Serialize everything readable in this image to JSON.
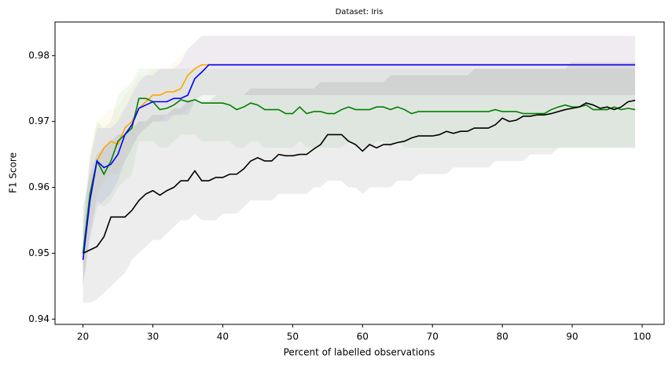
{
  "chart_data": {
    "type": "line",
    "title": "Dataset: Iris",
    "xlabel": "Percent of labelled observations",
    "ylabel": "F1 Score",
    "xlim": [
      16,
      103.15
    ],
    "ylim": [
      0.9392,
      0.9851
    ],
    "xticks": [
      20,
      30,
      40,
      50,
      60,
      70,
      80,
      90,
      100
    ],
    "yticks": [
      0.94,
      0.95,
      0.96,
      0.97,
      0.98
    ],
    "x": [
      20,
      21,
      22,
      23,
      24,
      25,
      26,
      27,
      28,
      29,
      30,
      31,
      32,
      33,
      34,
      35,
      36,
      37,
      38,
      39,
      40,
      41,
      42,
      43,
      44,
      45,
      46,
      47,
      48,
      49,
      50,
      51,
      52,
      53,
      54,
      55,
      56,
      57,
      58,
      59,
      60,
      61,
      62,
      63,
      64,
      65,
      66,
      67,
      68,
      69,
      70,
      71,
      72,
      73,
      74,
      75,
      76,
      77,
      78,
      79,
      80,
      81,
      82,
      83,
      84,
      85,
      86,
      87,
      88,
      89,
      90,
      91,
      92,
      93,
      94,
      95,
      96,
      97,
      98,
      99
    ],
    "series": [
      {
        "color": "orange",
        "values": [
          0.949,
          0.958,
          0.964,
          0.966,
          0.967,
          0.9665,
          0.969,
          0.97,
          0.972,
          0.973,
          0.974,
          0.974,
          0.9745,
          0.9745,
          0.975,
          0.977,
          0.978,
          0.9786,
          0.9786,
          0.9786,
          0.9786,
          0.9786,
          0.9786,
          0.9786,
          0.9786,
          0.9786,
          0.9786,
          0.9786,
          0.9786,
          0.9786,
          0.9786,
          0.9786,
          0.9786,
          0.9786,
          0.9786,
          0.9786,
          0.9786,
          0.9786,
          0.9786,
          0.9786,
          0.9786,
          0.9786,
          0.9786,
          0.9786,
          0.9786,
          0.9786,
          0.9786,
          0.9786,
          0.9786,
          0.9786,
          0.9786,
          0.9786,
          0.9786,
          0.9786,
          0.9786,
          0.9786,
          0.9786,
          0.9786,
          0.9786,
          0.9786,
          0.9786,
          0.9786,
          0.9786,
          0.9786,
          0.9786,
          0.9786,
          0.9786,
          0.9786,
          0.9786,
          0.9786,
          0.9786,
          0.9786,
          0.9786,
          0.9786,
          0.9786,
          0.9786,
          0.9786,
          0.9786,
          0.9786,
          0.9786
        ],
        "lower": [
          0.945,
          0.953,
          0.959,
          0.961,
          0.962,
          0.962,
          0.964,
          0.966,
          0.968,
          0.969,
          0.97,
          0.97,
          0.971,
          0.971,
          0.971,
          0.972,
          0.973,
          0.974,
          0.974,
          0.974,
          0.974,
          0.974,
          0.974,
          0.974,
          0.974,
          0.974,
          0.974,
          0.974,
          0.974,
          0.974,
          0.974,
          0.974,
          0.974,
          0.974,
          0.974,
          0.974,
          0.974,
          0.974,
          0.974,
          0.974,
          0.974,
          0.974,
          0.974,
          0.974,
          0.974,
          0.974,
          0.974,
          0.974,
          0.974,
          0.974,
          0.974,
          0.974,
          0.974,
          0.974,
          0.974,
          0.974,
          0.974,
          0.974,
          0.974,
          0.974,
          0.974,
          0.974,
          0.974,
          0.974,
          0.974,
          0.974,
          0.974,
          0.974,
          0.974,
          0.974,
          0.974,
          0.974,
          0.974,
          0.974,
          0.974,
          0.974,
          0.974,
          0.974,
          0.974,
          0.974
        ],
        "upper": [
          0.953,
          0.965,
          0.97,
          0.971,
          0.972,
          0.972,
          0.974,
          0.975,
          0.977,
          0.977,
          0.978,
          0.978,
          0.978,
          0.979,
          0.98,
          0.981,
          0.982,
          0.983,
          0.983,
          0.983,
          0.983,
          0.983,
          0.983,
          0.983,
          0.983,
          0.983,
          0.983,
          0.983,
          0.983,
          0.983,
          0.983,
          0.983,
          0.983,
          0.983,
          0.983,
          0.983,
          0.983,
          0.983,
          0.983,
          0.983,
          0.983,
          0.983,
          0.983,
          0.983,
          0.983,
          0.983,
          0.983,
          0.983,
          0.983,
          0.983,
          0.983,
          0.983,
          0.983,
          0.983,
          0.983,
          0.983,
          0.983,
          0.983,
          0.983,
          0.983,
          0.983,
          0.983,
          0.983,
          0.983,
          0.983,
          0.983,
          0.983,
          0.983,
          0.983,
          0.983,
          0.983,
          0.983,
          0.983,
          0.983,
          0.983,
          0.983,
          0.983,
          0.983,
          0.983,
          0.983
        ]
      },
      {
        "color": "green",
        "values": [
          0.95,
          0.959,
          0.964,
          0.962,
          0.964,
          0.967,
          0.968,
          0.969,
          0.9735,
          0.9735,
          0.973,
          0.9718,
          0.972,
          0.9725,
          0.9733,
          0.973,
          0.9733,
          0.9728,
          0.9728,
          0.9728,
          0.9728,
          0.9725,
          0.9718,
          0.9722,
          0.9728,
          0.9725,
          0.9718,
          0.9718,
          0.9718,
          0.9712,
          0.9712,
          0.9722,
          0.9712,
          0.9715,
          0.9715,
          0.9712,
          0.9712,
          0.9718,
          0.9722,
          0.9718,
          0.9718,
          0.9718,
          0.9722,
          0.9722,
          0.9718,
          0.9722,
          0.9718,
          0.9712,
          0.9715,
          0.9715,
          0.9715,
          0.9715,
          0.9715,
          0.9715,
          0.9715,
          0.9715,
          0.9715,
          0.9715,
          0.9715,
          0.9718,
          0.9715,
          0.9715,
          0.9715,
          0.9712,
          0.9712,
          0.9712,
          0.9712,
          0.9718,
          0.9722,
          0.9725,
          0.9722,
          0.9722,
          0.9725,
          0.9718,
          0.9718,
          0.9718,
          0.9722,
          0.9718,
          0.972,
          0.9718
        ],
        "lower": [
          0.945,
          0.953,
          0.958,
          0.957,
          0.958,
          0.96,
          0.961,
          0.962,
          0.967,
          0.967,
          0.967,
          0.966,
          0.966,
          0.967,
          0.968,
          0.968,
          0.968,
          0.967,
          0.967,
          0.967,
          0.967,
          0.967,
          0.966,
          0.966,
          0.967,
          0.967,
          0.966,
          0.966,
          0.966,
          0.966,
          0.966,
          0.967,
          0.966,
          0.966,
          0.966,
          0.966,
          0.966,
          0.966,
          0.967,
          0.966,
          0.966,
          0.966,
          0.967,
          0.967,
          0.966,
          0.967,
          0.966,
          0.966,
          0.966,
          0.966,
          0.966,
          0.966,
          0.966,
          0.966,
          0.966,
          0.966,
          0.966,
          0.966,
          0.966,
          0.966,
          0.966,
          0.966,
          0.966,
          0.966,
          0.966,
          0.966,
          0.966,
          0.966,
          0.966,
          0.966,
          0.966,
          0.966,
          0.966,
          0.966,
          0.966,
          0.966,
          0.966,
          0.966,
          0.966,
          0.966
        ],
        "upper": [
          0.955,
          0.965,
          0.97,
          0.969,
          0.97,
          0.974,
          0.975,
          0.976,
          0.978,
          0.978,
          0.978,
          0.978,
          0.978,
          0.978,
          0.978,
          0.978,
          0.978,
          0.978,
          0.978,
          0.978,
          0.978,
          0.978,
          0.978,
          0.978,
          0.978,
          0.978,
          0.978,
          0.978,
          0.978,
          0.978,
          0.978,
          0.978,
          0.978,
          0.978,
          0.978,
          0.978,
          0.978,
          0.978,
          0.978,
          0.978,
          0.978,
          0.978,
          0.978,
          0.978,
          0.978,
          0.978,
          0.978,
          0.978,
          0.978,
          0.978,
          0.978,
          0.978,
          0.978,
          0.978,
          0.978,
          0.978,
          0.978,
          0.978,
          0.978,
          0.978,
          0.978,
          0.978,
          0.978,
          0.978,
          0.978,
          0.978,
          0.978,
          0.978,
          0.978,
          0.978,
          0.978,
          0.978,
          0.978,
          0.978,
          0.978,
          0.978,
          0.978,
          0.978,
          0.978,
          0.978
        ]
      },
      {
        "color": "blue",
        "values": [
          0.949,
          0.958,
          0.964,
          0.963,
          0.9635,
          0.965,
          0.968,
          0.9695,
          0.972,
          0.9725,
          0.973,
          0.973,
          0.973,
          0.9735,
          0.9735,
          0.974,
          0.9765,
          0.9775,
          0.9786,
          0.9786,
          0.9786,
          0.9786,
          0.9786,
          0.9786,
          0.9786,
          0.9786,
          0.9786,
          0.9786,
          0.9786,
          0.9786,
          0.9786,
          0.9786,
          0.9786,
          0.9786,
          0.9786,
          0.9786,
          0.9786,
          0.9786,
          0.9786,
          0.9786,
          0.9786,
          0.9786,
          0.9786,
          0.9786,
          0.9786,
          0.9786,
          0.9786,
          0.9786,
          0.9786,
          0.9786,
          0.9786,
          0.9786,
          0.9786,
          0.9786,
          0.9786,
          0.9786,
          0.9786,
          0.9786,
          0.9786,
          0.9786,
          0.9786,
          0.9786,
          0.9786,
          0.9786,
          0.9786,
          0.9786,
          0.9786,
          0.9786,
          0.9786,
          0.9786,
          0.9786,
          0.9786,
          0.9786,
          0.9786,
          0.9786,
          0.9786,
          0.9786,
          0.9786,
          0.9786,
          0.9786
        ],
        "lower": [
          0.945,
          0.952,
          0.957,
          0.958,
          0.959,
          0.961,
          0.964,
          0.966,
          0.968,
          0.969,
          0.97,
          0.97,
          0.97,
          0.971,
          0.971,
          0.971,
          0.973,
          0.974,
          0.974,
          0.974,
          0.974,
          0.974,
          0.974,
          0.974,
          0.974,
          0.974,
          0.974,
          0.974,
          0.974,
          0.974,
          0.974,
          0.974,
          0.974,
          0.974,
          0.974,
          0.974,
          0.974,
          0.974,
          0.974,
          0.974,
          0.974,
          0.974,
          0.974,
          0.974,
          0.974,
          0.974,
          0.974,
          0.974,
          0.974,
          0.974,
          0.974,
          0.974,
          0.974,
          0.974,
          0.974,
          0.974,
          0.974,
          0.974,
          0.974,
          0.974,
          0.974,
          0.974,
          0.974,
          0.974,
          0.974,
          0.974,
          0.974,
          0.974,
          0.974,
          0.974,
          0.974,
          0.974,
          0.974,
          0.974,
          0.974,
          0.974,
          0.974,
          0.974,
          0.974,
          0.974
        ],
        "upper": [
          0.953,
          0.964,
          0.969,
          0.969,
          0.969,
          0.97,
          0.972,
          0.974,
          0.976,
          0.977,
          0.977,
          0.978,
          0.978,
          0.978,
          0.979,
          0.981,
          0.982,
          0.983,
          0.983,
          0.983,
          0.983,
          0.983,
          0.983,
          0.983,
          0.983,
          0.983,
          0.983,
          0.983,
          0.983,
          0.983,
          0.983,
          0.983,
          0.983,
          0.983,
          0.983,
          0.983,
          0.983,
          0.983,
          0.983,
          0.983,
          0.983,
          0.983,
          0.983,
          0.983,
          0.983,
          0.983,
          0.983,
          0.983,
          0.983,
          0.983,
          0.983,
          0.983,
          0.983,
          0.983,
          0.983,
          0.983,
          0.983,
          0.983,
          0.983,
          0.983,
          0.983,
          0.983,
          0.983,
          0.983,
          0.983,
          0.983,
          0.983,
          0.983,
          0.983,
          0.983,
          0.983,
          0.983,
          0.983,
          0.983,
          0.983,
          0.983,
          0.983,
          0.983,
          0.983,
          0.983
        ]
      },
      {
        "color": "black",
        "values": [
          0.95,
          0.9505,
          0.951,
          0.9525,
          0.9555,
          0.9555,
          0.9555,
          0.9565,
          0.958,
          0.959,
          0.9595,
          0.9588,
          0.9595,
          0.96,
          0.961,
          0.961,
          0.9625,
          0.961,
          0.961,
          0.9615,
          0.9615,
          0.962,
          0.962,
          0.9628,
          0.964,
          0.9645,
          0.964,
          0.964,
          0.965,
          0.9648,
          0.9648,
          0.965,
          0.965,
          0.9658,
          0.9665,
          0.968,
          0.968,
          0.968,
          0.967,
          0.9665,
          0.9655,
          0.9665,
          0.966,
          0.9665,
          0.9665,
          0.9668,
          0.967,
          0.9675,
          0.9678,
          0.9678,
          0.9678,
          0.968,
          0.9685,
          0.9682,
          0.9685,
          0.9685,
          0.969,
          0.969,
          0.969,
          0.9695,
          0.9705,
          0.97,
          0.9702,
          0.9708,
          0.9708,
          0.971,
          0.971,
          0.9712,
          0.9715,
          0.9718,
          0.972,
          0.9722,
          0.9728,
          0.9725,
          0.972,
          0.9722,
          0.9718,
          0.9722,
          0.973,
          0.9732
        ],
        "lower": [
          0.9425,
          0.9425,
          0.943,
          0.944,
          0.945,
          0.946,
          0.947,
          0.949,
          0.95,
          0.951,
          0.952,
          0.952,
          0.953,
          0.954,
          0.955,
          0.955,
          0.956,
          0.955,
          0.955,
          0.955,
          0.956,
          0.956,
          0.956,
          0.957,
          0.958,
          0.958,
          0.958,
          0.958,
          0.959,
          0.959,
          0.959,
          0.959,
          0.959,
          0.96,
          0.96,
          0.961,
          0.961,
          0.961,
          0.96,
          0.96,
          0.959,
          0.96,
          0.96,
          0.96,
          0.96,
          0.961,
          0.961,
          0.961,
          0.962,
          0.962,
          0.962,
          0.962,
          0.962,
          0.963,
          0.963,
          0.963,
          0.963,
          0.963,
          0.963,
          0.964,
          0.964,
          0.964,
          0.964,
          0.964,
          0.965,
          0.965,
          0.965,
          0.965,
          0.966,
          0.966,
          0.966,
          0.966,
          0.966,
          0.966,
          0.966,
          0.966,
          0.966,
          0.966,
          0.966,
          0.966
        ],
        "upper": [
          0.957,
          0.962,
          0.965,
          0.966,
          0.967,
          0.968,
          0.968,
          0.969,
          0.97,
          0.97,
          0.971,
          0.971,
          0.971,
          0.972,
          0.972,
          0.973,
          0.973,
          0.973,
          0.973,
          0.974,
          0.974,
          0.974,
          0.974,
          0.974,
          0.975,
          0.975,
          0.975,
          0.975,
          0.975,
          0.975,
          0.975,
          0.975,
          0.975,
          0.975,
          0.976,
          0.976,
          0.976,
          0.976,
          0.976,
          0.976,
          0.976,
          0.976,
          0.976,
          0.976,
          0.977,
          0.977,
          0.977,
          0.977,
          0.977,
          0.977,
          0.977,
          0.977,
          0.977,
          0.977,
          0.977,
          0.977,
          0.978,
          0.978,
          0.978,
          0.978,
          0.978,
          0.978,
          0.978,
          0.978,
          0.978,
          0.978,
          0.978,
          0.978,
          0.978,
          0.978,
          0.979,
          0.979,
          0.979,
          0.979,
          0.979,
          0.979,
          0.979,
          0.979,
          0.979,
          0.979
        ]
      }
    ]
  }
}
